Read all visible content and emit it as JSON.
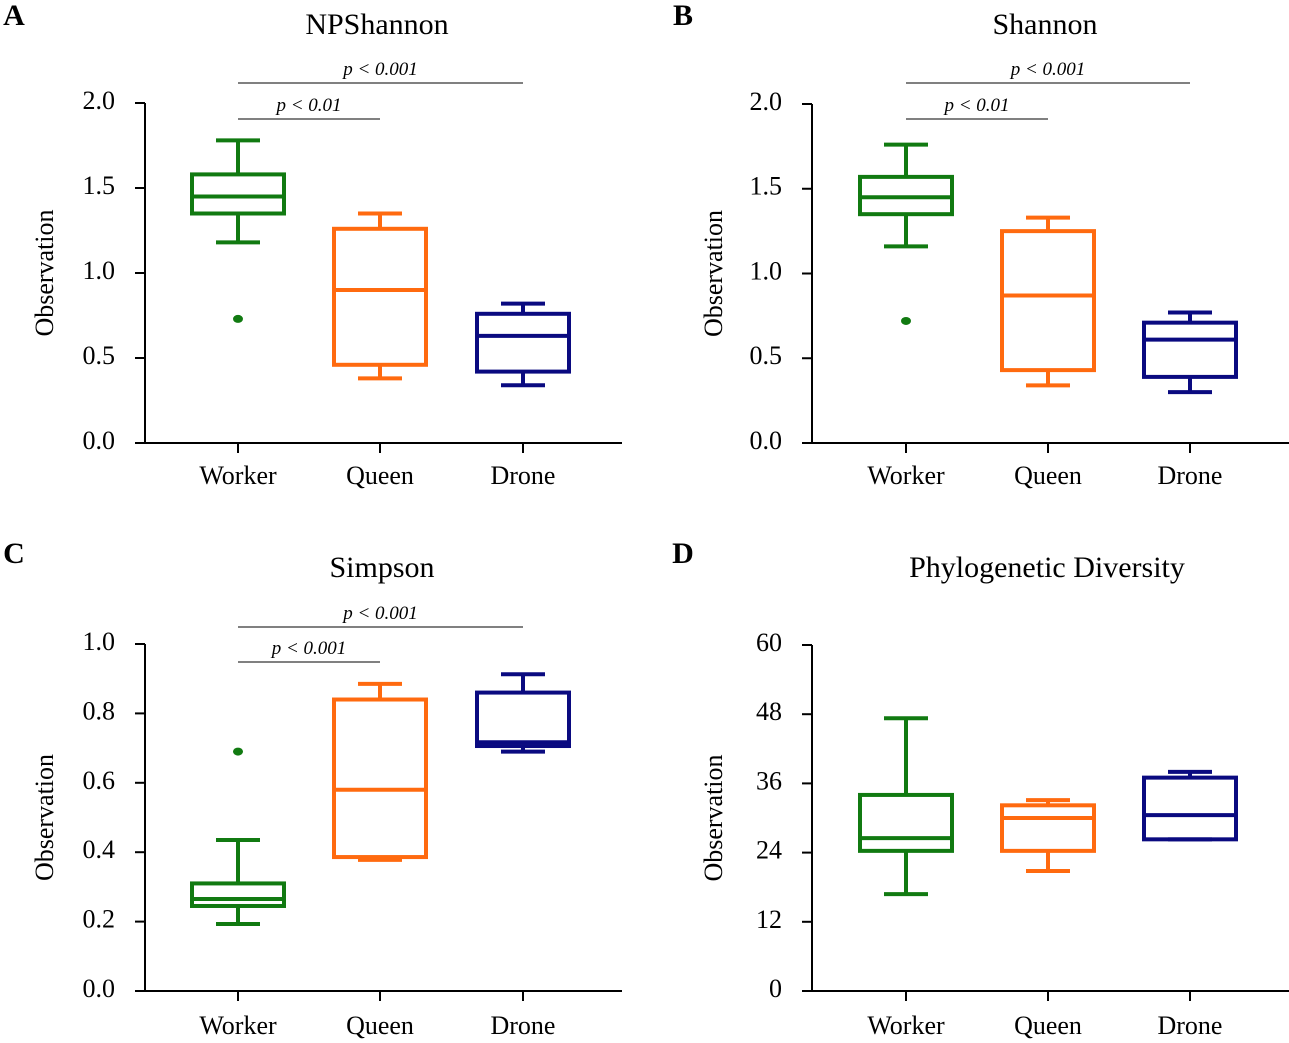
{
  "colors": {
    "Worker": "#117a11",
    "Queen": "#ff6a0f",
    "Drone": "#0a0a80"
  },
  "chart_data": [
    {
      "panel": "A",
      "type": "box",
      "title": "NPShannon",
      "ylabel": "Observation",
      "categories": [
        "Worker",
        "Queen",
        "Drone"
      ],
      "ylim": [
        0,
        2
      ],
      "yticks": [
        "0.0",
        "0.5",
        "1.0",
        "1.5",
        "2.0"
      ],
      "ytick_values": [
        0,
        0.5,
        1,
        1.5,
        2
      ],
      "boxes": [
        {
          "min": 1.18,
          "q1": 1.35,
          "median": 1.45,
          "q3": 1.58,
          "max": 1.78,
          "outliers": [
            0.73
          ]
        },
        {
          "min": 0.38,
          "q1": 0.46,
          "median": 0.9,
          "q3": 1.26,
          "max": 1.35,
          "outliers": []
        },
        {
          "min": 0.34,
          "q1": 0.42,
          "median": 0.63,
          "q3": 0.76,
          "max": 0.82,
          "outliers": []
        }
      ],
      "significance": [
        {
          "from": "Worker",
          "to": "Drone",
          "label": "p < 0.001"
        },
        {
          "from": "Worker",
          "to": "Queen",
          "label": "p < 0.01"
        }
      ]
    },
    {
      "panel": "B",
      "type": "box",
      "title": "Shannon",
      "ylabel": "Observation",
      "categories": [
        "Worker",
        "Queen",
        "Drone"
      ],
      "ylim": [
        0,
        2
      ],
      "yticks": [
        "0.0",
        "0.5",
        "1.0",
        "1.5",
        "2.0"
      ],
      "ytick_values": [
        0,
        0.5,
        1,
        1.5,
        2
      ],
      "boxes": [
        {
          "min": 1.16,
          "q1": 1.35,
          "median": 1.45,
          "q3": 1.57,
          "max": 1.76,
          "outliers": [
            0.72
          ]
        },
        {
          "min": 0.34,
          "q1": 0.43,
          "median": 0.87,
          "q3": 1.25,
          "max": 1.33,
          "outliers": []
        },
        {
          "min": 0.3,
          "q1": 0.39,
          "median": 0.61,
          "q3": 0.71,
          "max": 0.77,
          "outliers": []
        }
      ],
      "significance": [
        {
          "from": "Worker",
          "to": "Drone",
          "label": "p < 0.001"
        },
        {
          "from": "Worker",
          "to": "Queen",
          "label": "p < 0.01"
        }
      ]
    },
    {
      "panel": "C",
      "type": "box",
      "title": "Simpson",
      "ylabel": "Observation",
      "categories": [
        "Worker",
        "Queen",
        "Drone"
      ],
      "ylim": [
        0,
        1
      ],
      "yticks": [
        "0.0",
        "0.2",
        "0.4",
        "0.6",
        "0.8",
        "1.0"
      ],
      "ytick_values": [
        0,
        0.2,
        0.4,
        0.6,
        0.8,
        1
      ],
      "boxes": [
        {
          "min": 0.193,
          "q1": 0.245,
          "median": 0.265,
          "q3": 0.31,
          "max": 0.435,
          "outliers": [
            0.69
          ]
        },
        {
          "min": 0.378,
          "q1": 0.386,
          "median": 0.58,
          "q3": 0.84,
          "max": 0.885,
          "outliers": []
        },
        {
          "min": 0.69,
          "q1": 0.706,
          "median": 0.717,
          "q3": 0.86,
          "max": 0.913,
          "outliers": []
        }
      ],
      "significance": [
        {
          "from": "Worker",
          "to": "Drone",
          "label": "p < 0.001"
        },
        {
          "from": "Worker",
          "to": "Queen",
          "label": "p < 0.001"
        }
      ]
    },
    {
      "panel": "D",
      "type": "box",
      "title": "Phylogenetic Diversity",
      "ylabel": "Observation",
      "categories": [
        "Worker",
        "Queen",
        "Drone"
      ],
      "ylim": [
        0,
        60
      ],
      "yticks": [
        "0",
        "12",
        "24",
        "36",
        "48",
        "60"
      ],
      "ytick_values": [
        0,
        12,
        24,
        36,
        48,
        60
      ],
      "boxes": [
        {
          "min": 16.8,
          "q1": 24.3,
          "median": 26.5,
          "q3": 34.0,
          "max": 47.3,
          "outliers": []
        },
        {
          "min": 20.8,
          "q1": 24.3,
          "median": 30.0,
          "q3": 32.2,
          "max": 33.1,
          "outliers": []
        },
        {
          "min": 26.3,
          "q1": 26.3,
          "median": 30.5,
          "q3": 37.0,
          "max": 38.0,
          "outliers": []
        }
      ],
      "significance": []
    }
  ]
}
